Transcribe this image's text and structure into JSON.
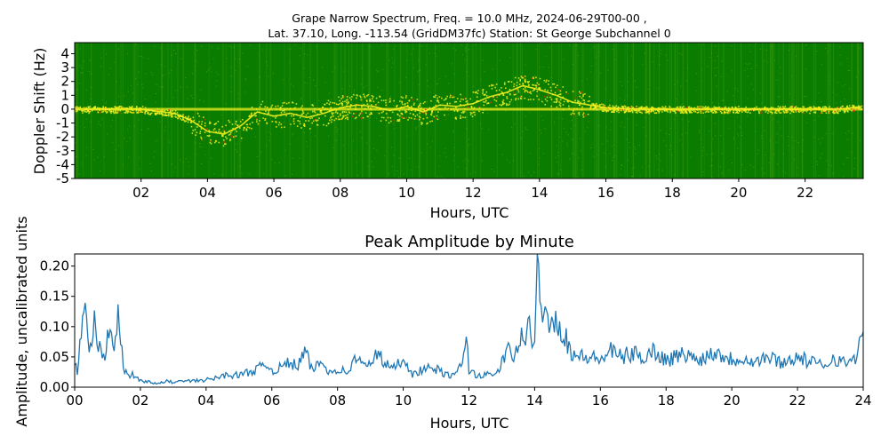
{
  "figure": {
    "title_line1": "Grape Narrow Spectrum, Freq. = 10.0 MHz, 2024-06-29T00-00 ,",
    "title_line2": "Lat.  37.10, Long. -113.54 (GridDM37fc) Station: St George Subchannel 0"
  },
  "chart_data": [
    {
      "type": "heatmap",
      "xlabel": "Hours, UTC",
      "ylabel": "Doppler Shift (Hz)",
      "xlim": [
        0,
        23.75
      ],
      "ylim": [
        -5,
        4.8
      ],
      "x_ticks": [
        "02",
        "04",
        "06",
        "08",
        "10",
        "12",
        "14",
        "16",
        "18",
        "20",
        "22"
      ],
      "x_tick_values": [
        2,
        4,
        6,
        8,
        10,
        12,
        14,
        16,
        18,
        20,
        22
      ],
      "y_ticks": [
        "4",
        "3",
        "2",
        "1",
        "0",
        "-1",
        "-2",
        "-3",
        "-4",
        "-5"
      ],
      "y_tick_values": [
        4,
        3,
        2,
        1,
        0,
        -1,
        -2,
        -3,
        -4,
        -5
      ],
      "background_color": "#0a7d00",
      "trace_color": "#f0f020",
      "peak_color": "#e03010",
      "doppler_trace": {
        "x": [
          0,
          1,
          2,
          3,
          3.5,
          4,
          4.5,
          5,
          5.5,
          6,
          6.5,
          7,
          7.5,
          8,
          8.5,
          9,
          9.5,
          10,
          10.5,
          11,
          11.5,
          12,
          12.5,
          13,
          13.5,
          14,
          14.5,
          15,
          15.5,
          16,
          17,
          18,
          19,
          20,
          21,
          22,
          23,
          23.75
        ],
        "y": [
          0,
          0,
          0,
          -0.3,
          -0.8,
          -1.6,
          -1.8,
          -1.2,
          -0.2,
          -0.5,
          -0.3,
          -0.6,
          -0.3,
          0.1,
          0.3,
          0.2,
          -0.1,
          0.2,
          -0.2,
          0.3,
          0.2,
          0.4,
          0.9,
          1.2,
          1.7,
          1.4,
          1.0,
          0.5,
          0.3,
          0.1,
          0,
          0,
          0,
          0,
          0,
          0,
          0,
          0.2
        ]
      }
    },
    {
      "type": "line",
      "title": "Peak Amplitude by Minute",
      "xlabel": "Hours, UTC",
      "ylabel": "Amplitude, uncalibrated units",
      "xlim": [
        0,
        24
      ],
      "ylim": [
        0,
        0.22
      ],
      "x_ticks": [
        "00",
        "02",
        "04",
        "06",
        "08",
        "10",
        "12",
        "14",
        "16",
        "18",
        "20",
        "22",
        "24"
      ],
      "x_tick_values": [
        0,
        2,
        4,
        6,
        8,
        10,
        12,
        14,
        16,
        18,
        20,
        22,
        24
      ],
      "y_ticks": [
        "0.00",
        "0.05",
        "0.10",
        "0.15",
        "0.20"
      ],
      "y_tick_values": [
        0,
        0.05,
        0.1,
        0.15,
        0.2
      ],
      "line_color": "#1f77b4",
      "series": [
        {
          "x": [
            0,
            0.1,
            0.2,
            0.3,
            0.4,
            0.5,
            0.6,
            0.7,
            0.8,
            0.9,
            1.0,
            1.1,
            1.2,
            1.3,
            1.4,
            1.5,
            1.6,
            1.8,
            2.0,
            2.2,
            2.5,
            2.8,
            3.0,
            3.3,
            3.6,
            4.0,
            4.3,
            4.6,
            5.0,
            5.3,
            5.6,
            5.8,
            6.0,
            6.2,
            6.5,
            6.8,
            7.0,
            7.2,
            7.5,
            7.8,
            8.0,
            8.3,
            8.6,
            8.9,
            9.2,
            9.4,
            9.7,
            10.0,
            10.3,
            10.6,
            11.0,
            11.3,
            11.6,
            11.8,
            11.9,
            12.0,
            12.2,
            12.5,
            12.8,
            13.0,
            13.2,
            13.4,
            13.6,
            13.8,
            14.0,
            14.1,
            14.2,
            14.3,
            14.5,
            14.7,
            14.9,
            15.1,
            15.3,
            15.6,
            16.0,
            16.3,
            16.6,
            17.0,
            17.3,
            17.6,
            18.0,
            18.3,
            18.6,
            18.9,
            19.2,
            19.5,
            19.8,
            20.1,
            20.4,
            20.7,
            21.0,
            21.3,
            21.6,
            21.9,
            22.2,
            22.5,
            22.8,
            23.1,
            23.4,
            23.7,
            24.0
          ],
          "values": [
            0.04,
            0.02,
            0.09,
            0.12,
            0.08,
            0.06,
            0.1,
            0.05,
            0.07,
            0.04,
            0.09,
            0.13,
            0.06,
            0.12,
            0.07,
            0.03,
            0.02,
            0.02,
            0.01,
            0.01,
            0.005,
            0.01,
            0.008,
            0.01,
            0.01,
            0.012,
            0.015,
            0.02,
            0.02,
            0.025,
            0.03,
            0.04,
            0.028,
            0.03,
            0.04,
            0.035,
            0.06,
            0.03,
            0.04,
            0.025,
            0.03,
            0.025,
            0.05,
            0.03,
            0.06,
            0.04,
            0.03,
            0.05,
            0.02,
            0.03,
            0.03,
            0.02,
            0.02,
            0.04,
            0.09,
            0.03,
            0.02,
            0.02,
            0.02,
            0.04,
            0.06,
            0.05,
            0.08,
            0.1,
            0.06,
            0.22,
            0.15,
            0.11,
            0.13,
            0.1,
            0.09,
            0.06,
            0.05,
            0.05,
            0.045,
            0.06,
            0.05,
            0.055,
            0.05,
            0.06,
            0.045,
            0.05,
            0.055,
            0.045,
            0.05,
            0.06,
            0.05,
            0.045,
            0.05,
            0.04,
            0.05,
            0.045,
            0.04,
            0.05,
            0.045,
            0.04,
            0.035,
            0.05,
            0.04,
            0.045,
            0.08
          ]
        }
      ]
    }
  ]
}
